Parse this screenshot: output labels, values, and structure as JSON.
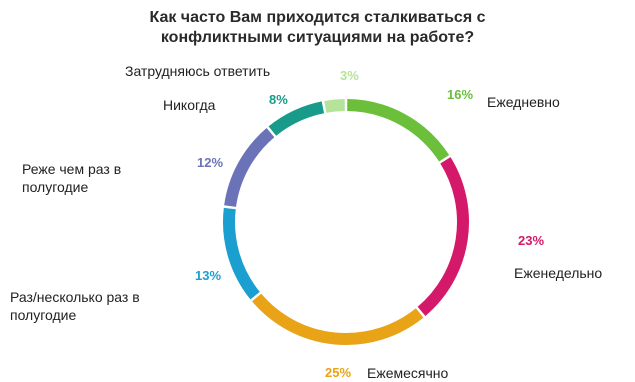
{
  "chart_data": {
    "type": "pie",
    "title_lines": [
      "Как часто Вам приходится сталкиваться с",
      "конфликтными ситуациями на работе?"
    ],
    "slices": [
      {
        "label_lines": [
          "Ежедневно"
        ],
        "value": 16,
        "value_label": "16%",
        "color": "#6bbf3b"
      },
      {
        "label_lines": [
          "Еженедельно"
        ],
        "value": 23,
        "value_label": "23%",
        "color": "#d4196b"
      },
      {
        "label_lines": [
          "Ежемесячно"
        ],
        "value": 25,
        "value_label": "25%",
        "color": "#e8a317"
      },
      {
        "label_lines": [
          "Раз/несколько раз в",
          "полугодие"
        ],
        "value": 13,
        "value_label": "13%",
        "color": "#1a9fd0"
      },
      {
        "label_lines": [
          "Реже чем раз в",
          "полугодие"
        ],
        "value": 12,
        "value_label": "12%",
        "color": "#6a73b8"
      },
      {
        "label_lines": [
          "Никогда"
        ],
        "value": 8,
        "value_label": "8%",
        "color": "#189b8a"
      },
      {
        "label_lines": [
          "Затрудняюсь ответить"
        ],
        "value": 3,
        "value_label": "3%",
        "color": "#b6e39a"
      }
    ],
    "start_angle_deg": 0,
    "style": "ring"
  }
}
